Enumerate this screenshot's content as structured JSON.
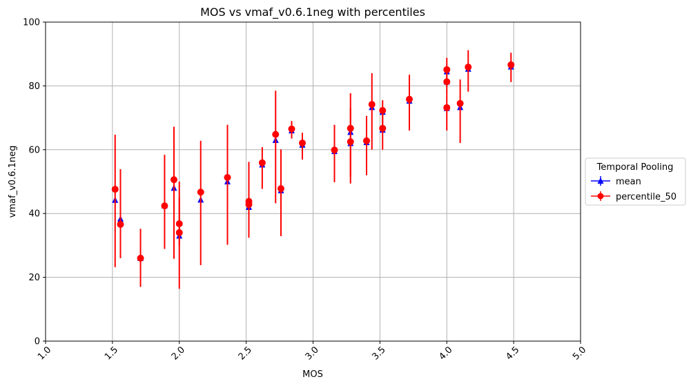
{
  "chart_data": {
    "type": "scatter",
    "title": "MOS vs vmaf_v0.6.1neg with percentiles",
    "xlabel": "MOS",
    "ylabel": "vmaf_v0.6.1neg",
    "xlim": [
      1.0,
      5.0
    ],
    "ylim": [
      0,
      100
    ],
    "xticks": [
      "1.0",
      "1.5",
      "2.0",
      "2.5",
      "3.0",
      "3.5",
      "4.0",
      "4.5",
      "5.0"
    ],
    "yticks": [
      "0",
      "20",
      "40",
      "60",
      "80",
      "100"
    ],
    "grid": true,
    "legend": {
      "title": "Temporal Pooling",
      "placement": "outside-right"
    },
    "series": [
      {
        "name": "mean",
        "color": "#0000ff",
        "marker": "triangle",
        "points": [
          [
            1.52,
            44.2
          ],
          [
            1.56,
            38.3
          ],
          [
            1.71,
            26.0
          ],
          [
            1.89,
            42.5
          ],
          [
            1.96,
            48.0
          ],
          [
            2.0,
            33.0
          ],
          [
            2.0,
            37.0
          ],
          [
            2.16,
            44.3
          ],
          [
            2.36,
            50.0
          ],
          [
            2.52,
            42.0
          ],
          [
            2.52,
            43.5
          ],
          [
            2.62,
            55.3
          ],
          [
            2.72,
            63.0
          ],
          [
            2.76,
            47.2
          ],
          [
            2.84,
            66.0
          ],
          [
            2.92,
            61.5
          ],
          [
            3.16,
            59.5
          ],
          [
            3.28,
            62.0
          ],
          [
            3.28,
            65.5
          ],
          [
            3.4,
            62.3
          ],
          [
            3.44,
            73.3
          ],
          [
            3.52,
            66.2
          ],
          [
            3.52,
            71.8
          ],
          [
            3.72,
            75.3
          ],
          [
            4.0,
            73.0
          ],
          [
            4.0,
            81.3
          ],
          [
            4.0,
            84.5
          ],
          [
            4.1,
            73.3
          ],
          [
            4.16,
            85.3
          ],
          [
            4.48,
            86.0
          ]
        ]
      },
      {
        "name": "percentile_50",
        "color": "#ff0000",
        "marker": "circle",
        "points": [
          [
            1.52,
            47.6,
            23.2,
            64.7
          ],
          [
            1.56,
            36.6,
            26.0,
            53.9
          ],
          [
            1.71,
            26.0,
            17.0,
            35.2
          ],
          [
            1.89,
            42.4,
            28.9,
            58.4
          ],
          [
            1.96,
            50.6,
            25.8,
            67.2
          ],
          [
            2.0,
            34.0,
            16.4,
            50.0
          ],
          [
            2.0,
            36.8,
            30.0,
            45.0
          ],
          [
            2.16,
            46.7,
            23.8,
            62.8
          ],
          [
            2.36,
            51.3,
            30.2,
            67.8
          ],
          [
            2.52,
            42.8,
            32.4,
            56.2
          ],
          [
            2.52,
            43.8,
            38.0,
            52.0
          ],
          [
            2.62,
            55.9,
            47.7,
            60.8
          ],
          [
            2.72,
            64.8,
            43.2,
            78.5
          ],
          [
            2.76,
            47.8,
            32.9,
            60.1
          ],
          [
            2.84,
            66.5,
            63.5,
            69.0
          ],
          [
            2.92,
            62.1,
            56.9,
            65.3
          ],
          [
            3.16,
            59.9,
            49.8,
            67.8
          ],
          [
            3.28,
            62.5,
            49.4,
            73.0
          ],
          [
            3.28,
            66.7,
            51.6,
            77.7
          ],
          [
            3.4,
            62.8,
            52.0,
            70.6
          ],
          [
            3.44,
            74.2,
            60.0,
            84.0
          ],
          [
            3.52,
            66.7,
            60.0,
            71.0
          ],
          [
            3.52,
            72.3,
            66.0,
            75.5
          ],
          [
            3.72,
            75.8,
            66.0,
            83.5
          ],
          [
            4.0,
            73.2,
            66.0,
            77.0
          ],
          [
            4.0,
            81.3,
            77.0,
            85.0
          ],
          [
            4.0,
            85.1,
            80.0,
            88.8
          ],
          [
            4.1,
            74.5,
            62.1,
            82.0
          ],
          [
            4.16,
            85.9,
            78.2,
            91.2
          ],
          [
            4.48,
            86.6,
            81.2,
            90.4
          ]
        ]
      }
    ]
  }
}
